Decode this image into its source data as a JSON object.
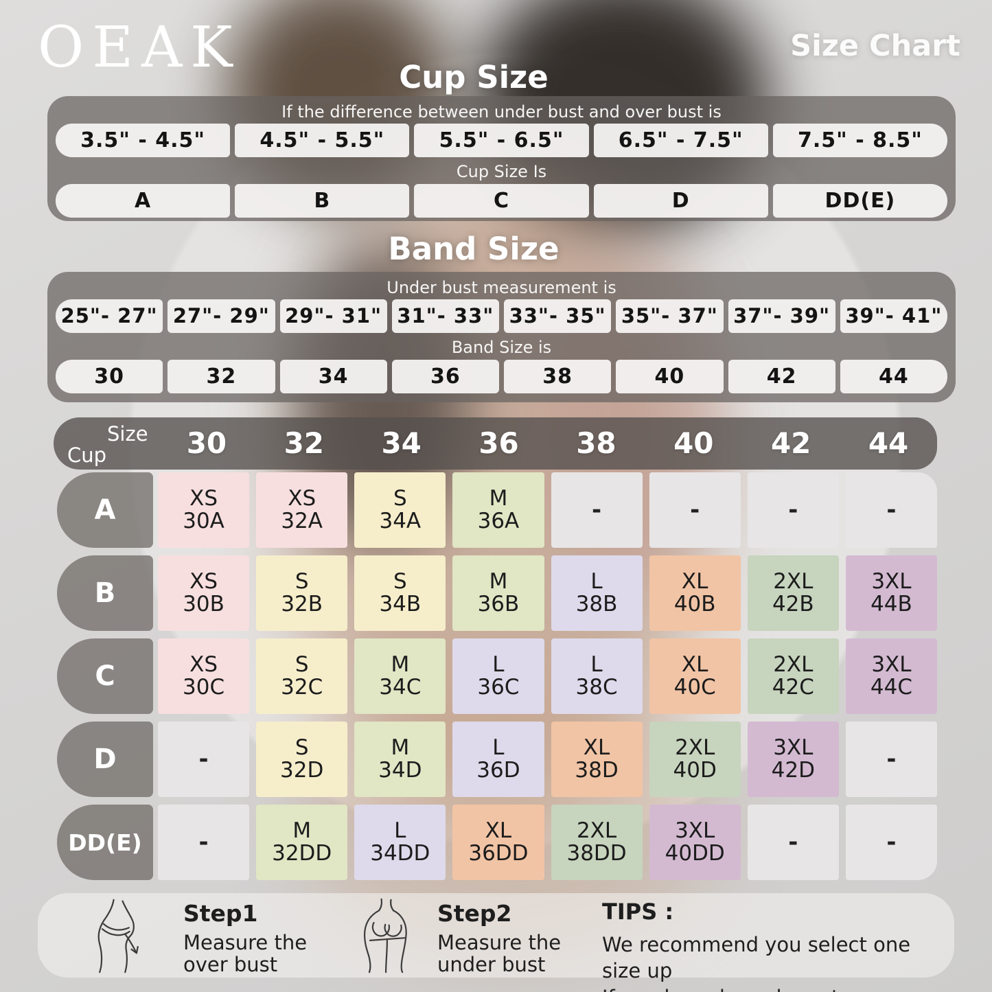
{
  "brand": "OEAK",
  "page_title": "Size Chart",
  "cup_size_section": {
    "title": "Cup Size",
    "header": "If the difference between under bust and over bust is",
    "ranges": [
      "3.5\" - 4.5\"",
      "4.5\" - 5.5\"",
      "5.5\" - 6.5\"",
      "6.5\" - 7.5\"",
      "7.5\" - 8.5\""
    ],
    "subheader": "Cup Size Is",
    "cups": [
      "A",
      "B",
      "C",
      "D",
      "DD(E)"
    ]
  },
  "band_size_section": {
    "title": "Band Size",
    "header": "Under bust measurement is",
    "ranges": [
      "25\"- 27\"",
      "27\"- 29\"",
      "29\"- 31\"",
      "31\"- 33\"",
      "33\"- 35\"",
      "35\"- 37\"",
      "37\"- 39\"",
      "39\"- 41\""
    ],
    "subheader": "Band Size is",
    "bands": [
      "30",
      "32",
      "34",
      "36",
      "38",
      "40",
      "42",
      "44"
    ]
  },
  "matrix": {
    "corner": {
      "top": "Size",
      "bottom": "Cup"
    },
    "columns": [
      "30",
      "32",
      "34",
      "36",
      "38",
      "40",
      "42",
      "44"
    ],
    "rows": [
      {
        "cup": "A",
        "cells": [
          {
            "size": "XS",
            "code": "30A"
          },
          {
            "size": "XS",
            "code": "32A"
          },
          {
            "size": "S",
            "code": "34A"
          },
          {
            "size": "M",
            "code": "36A"
          },
          {
            "size": "-",
            "code": ""
          },
          {
            "size": "-",
            "code": ""
          },
          {
            "size": "-",
            "code": ""
          },
          {
            "size": "-",
            "code": ""
          }
        ]
      },
      {
        "cup": "B",
        "cells": [
          {
            "size": "XS",
            "code": "30B"
          },
          {
            "size": "S",
            "code": "32B"
          },
          {
            "size": "S",
            "code": "34B"
          },
          {
            "size": "M",
            "code": "36B"
          },
          {
            "size": "L",
            "code": "38B"
          },
          {
            "size": "XL",
            "code": "40B"
          },
          {
            "size": "2XL",
            "code": "42B"
          },
          {
            "size": "3XL",
            "code": "44B"
          }
        ]
      },
      {
        "cup": "C",
        "cells": [
          {
            "size": "XS",
            "code": "30C"
          },
          {
            "size": "S",
            "code": "32C"
          },
          {
            "size": "M",
            "code": "34C"
          },
          {
            "size": "L",
            "code": "36C"
          },
          {
            "size": "L",
            "code": "38C"
          },
          {
            "size": "XL",
            "code": "40C"
          },
          {
            "size": "2XL",
            "code": "42C"
          },
          {
            "size": "3XL",
            "code": "44C"
          }
        ]
      },
      {
        "cup": "D",
        "cells": [
          {
            "size": "-",
            "code": ""
          },
          {
            "size": "S",
            "code": "32D"
          },
          {
            "size": "M",
            "code": "34D"
          },
          {
            "size": "L",
            "code": "36D"
          },
          {
            "size": "XL",
            "code": "38D"
          },
          {
            "size": "2XL",
            "code": "40D"
          },
          {
            "size": "3XL",
            "code": "42D"
          },
          {
            "size": "-",
            "code": ""
          }
        ]
      },
      {
        "cup": "DD(E)",
        "cells": [
          {
            "size": "-",
            "code": ""
          },
          {
            "size": "M",
            "code": "32DD"
          },
          {
            "size": "L",
            "code": "34DD"
          },
          {
            "size": "XL",
            "code": "36DD"
          },
          {
            "size": "2XL",
            "code": "38DD"
          },
          {
            "size": "3XL",
            "code": "40DD"
          },
          {
            "size": "-",
            "code": ""
          },
          {
            "size": "-",
            "code": ""
          }
        ]
      }
    ]
  },
  "colors": {
    "XS": "#f7dfdf",
    "S": "#f6eecb",
    "M": "#e1e6c5",
    "L": "#dedaeb",
    "XL": "#f1c4a5",
    "2XL": "#c7d4be",
    "3XL": "#d3bad1",
    "empty": "#e7e5e6"
  },
  "footer": {
    "step1": {
      "title": "Step1",
      "line1": "Measure the",
      "line2": "over bust"
    },
    "step2": {
      "title": "Step2",
      "line1": "Measure the",
      "line2": "under bust"
    },
    "tips": {
      "title": "TIPS :",
      "line1": "We recommend you select one size up",
      "line2": "If you have large breasts."
    }
  }
}
